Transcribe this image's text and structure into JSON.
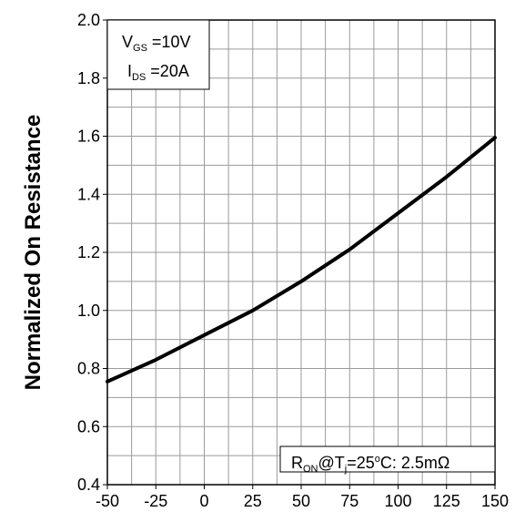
{
  "chart_data": {
    "type": "line",
    "title": "",
    "xlabel": "",
    "ylabel": "Normalized On Resistance",
    "xlim": [
      -50,
      150
    ],
    "ylim": [
      0.4,
      2.0
    ],
    "x_ticks": [
      "-50",
      "-25",
      "0",
      "25",
      "50",
      "75",
      "100",
      "125",
      "150"
    ],
    "y_ticks": [
      "0.4",
      "0.6",
      "0.8",
      "1.0",
      "1.2",
      "1.4",
      "1.6",
      "1.8",
      "2.0"
    ],
    "grid": true,
    "series": [
      {
        "x": [
          -50,
          -25,
          0,
          25,
          50,
          75,
          100,
          125,
          150
        ],
        "y": [
          0.755,
          0.83,
          0.915,
          1.0,
          1.1,
          1.21,
          1.335,
          1.46,
          1.595
        ],
        "color": "#000000"
      }
    ],
    "annotations": {
      "conditions": {
        "line1": {
          "main": "V",
          "sub": "GS",
          "rest": " =10V"
        },
        "line2": {
          "main": "I",
          "sub": "DS",
          "rest": " =20A"
        }
      },
      "reference": {
        "main": "R",
        "sub1": "ON",
        "mid": "@T",
        "sub2": "j",
        "rest1": "=25",
        "sup": "o",
        "rest2": "C: 2.5mΩ"
      }
    }
  }
}
